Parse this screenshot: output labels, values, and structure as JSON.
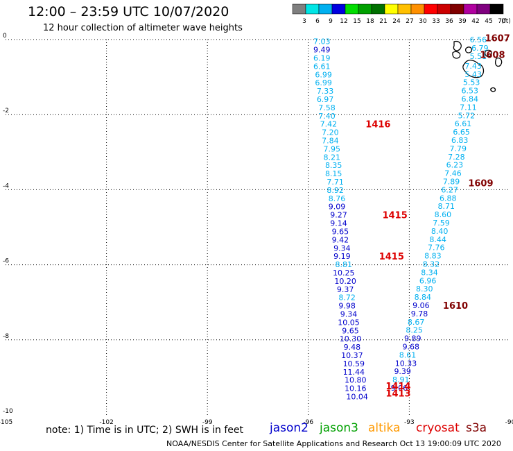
{
  "header": {
    "title": "12:00 – 23:59 UTC 10/07/2020",
    "subtitle": "12 hour collection of altimeter wave heights"
  },
  "colorbar": {
    "labels": [
      "3",
      "6",
      "9",
      "12",
      "15",
      "18",
      "21",
      "24",
      "27",
      "30",
      "33",
      "36",
      "39",
      "42",
      "45",
      "70",
      "(ft)"
    ],
    "colors": [
      "#7f7f7f",
      "#00e5e5",
      "#00b0f0",
      "#0000e0",
      "#00dd00",
      "#00a000",
      "#007000",
      "#ffff00",
      "#ffc000",
      "#ff9000",
      "#ff0000",
      "#cc0000",
      "#800000",
      "#b0009f",
      "#7f007f",
      "#000000"
    ]
  },
  "note": "note:  1) Time is in UTC;  2) SWH is in feet",
  "satellites": [
    {
      "name": "jason2",
      "color": "#0000cc"
    },
    {
      "name": "jason3",
      "color": "#00a000"
    },
    {
      "name": "altika",
      "color": "#ff9900"
    },
    {
      "name": "cryosat",
      "color": "#dd0000"
    },
    {
      "name": "s3a",
      "color": "#800000"
    }
  ],
  "footer": "NOAA/NESDIS Center for Satellite Applications and Research   Oct 13 19:00:09 UTC 2020",
  "chart_data": {
    "type": "scatter",
    "xlim": [
      -105,
      -90
    ],
    "ylim": [
      -10,
      0
    ],
    "x_ticks": [
      "-105",
      "-102",
      "-99",
      "-96",
      "-93",
      "-90"
    ],
    "y_ticks": [
      "0",
      "-2",
      "-4",
      "-6",
      "-8",
      "-10"
    ],
    "grid": true,
    "series": [
      {
        "name": "track-west",
        "points": [
          {
            "x": -95.6,
            "y": -0.05,
            "v": "7.03",
            "c": "#00b0f0"
          },
          {
            "x": -95.6,
            "y": -0.27,
            "v": "9.49",
            "c": "#0000cc"
          },
          {
            "x": -95.6,
            "y": -0.49,
            "v": "6.19",
            "c": "#00b0f0"
          },
          {
            "x": -95.6,
            "y": -0.71,
            "v": "6.61",
            "c": "#00b0f0"
          },
          {
            "x": -95.55,
            "y": -0.93,
            "v": "6.99",
            "c": "#00b0f0"
          },
          {
            "x": -95.55,
            "y": -1.15,
            "v": "6.99",
            "c": "#00b0f0"
          },
          {
            "x": -95.5,
            "y": -1.37,
            "v": "7.33",
            "c": "#00b0f0"
          },
          {
            "x": -95.5,
            "y": -1.59,
            "v": "6.97",
            "c": "#00b0f0"
          },
          {
            "x": -95.45,
            "y": -1.81,
            "v": "7.58",
            "c": "#00b0f0"
          },
          {
            "x": -95.45,
            "y": -2.03,
            "v": "7.40",
            "c": "#00b0f0"
          },
          {
            "x": -95.4,
            "y": -2.25,
            "v": "7.42",
            "c": "#00b0f0"
          },
          {
            "x": -95.35,
            "y": -2.47,
            "v": "7.20",
            "c": "#00b0f0"
          },
          {
            "x": -95.35,
            "y": -2.69,
            "v": "7.84",
            "c": "#00b0f0"
          },
          {
            "x": -95.3,
            "y": -2.91,
            "v": "7.95",
            "c": "#00b0f0"
          },
          {
            "x": -95.3,
            "y": -3.13,
            "v": "8.21",
            "c": "#00b0f0"
          },
          {
            "x": -95.25,
            "y": -3.35,
            "v": "8.35",
            "c": "#00b0f0"
          },
          {
            "x": -95.25,
            "y": -3.57,
            "v": "8.15",
            "c": "#00b0f0"
          },
          {
            "x": -95.2,
            "y": -3.79,
            "v": "7.71",
            "c": "#00b0f0"
          },
          {
            "x": -95.2,
            "y": -4.01,
            "v": "8.92",
            "c": "#00b0f0"
          },
          {
            "x": -95.15,
            "y": -4.23,
            "v": "8.76",
            "c": "#00b0f0"
          },
          {
            "x": -95.15,
            "y": -4.45,
            "v": "9.09",
            "c": "#0000cc"
          },
          {
            "x": -95.1,
            "y": -4.67,
            "v": "9.27",
            "c": "#0000cc"
          },
          {
            "x": -95.1,
            "y": -4.89,
            "v": "9.14",
            "c": "#0000cc"
          },
          {
            "x": -95.05,
            "y": -5.11,
            "v": "9.65",
            "c": "#0000cc"
          },
          {
            "x": -95.05,
            "y": -5.33,
            "v": "9.42",
            "c": "#0000cc"
          },
          {
            "x": -95.0,
            "y": -5.55,
            "v": "9.34",
            "c": "#0000cc"
          },
          {
            "x": -95.0,
            "y": -5.77,
            "v": "9.19",
            "c": "#0000cc"
          },
          {
            "x": -94.95,
            "y": -5.99,
            "v": "8.81",
            "c": "#00b0f0"
          },
          {
            "x": -94.95,
            "y": -6.21,
            "v": "10.25",
            "c": "#0000cc"
          },
          {
            "x": -94.9,
            "y": -6.43,
            "v": "10.20",
            "c": "#0000cc"
          },
          {
            "x": -94.9,
            "y": -6.65,
            "v": "9.37",
            "c": "#0000cc"
          },
          {
            "x": -94.85,
            "y": -6.87,
            "v": "8.72",
            "c": "#00b0f0"
          },
          {
            "x": -94.85,
            "y": -7.09,
            "v": "9.98",
            "c": "#0000cc"
          },
          {
            "x": -94.8,
            "y": -7.31,
            "v": "9.34",
            "c": "#0000cc"
          },
          {
            "x": -94.8,
            "y": -7.53,
            "v": "10.05",
            "c": "#0000cc"
          },
          {
            "x": -94.75,
            "y": -7.75,
            "v": "9.65",
            "c": "#0000cc"
          },
          {
            "x": -94.75,
            "y": -7.97,
            "v": "10.30",
            "c": "#0000cc"
          },
          {
            "x": -94.7,
            "y": -8.19,
            "v": "9.48",
            "c": "#0000cc"
          },
          {
            "x": -94.7,
            "y": -8.41,
            "v": "10.37",
            "c": "#0000cc"
          },
          {
            "x": -94.65,
            "y": -8.63,
            "v": "10.59",
            "c": "#0000cc"
          },
          {
            "x": -94.65,
            "y": -8.85,
            "v": "11.44",
            "c": "#0000cc"
          },
          {
            "x": -94.6,
            "y": -9.07,
            "v": "10.80",
            "c": "#0000cc"
          },
          {
            "x": -94.6,
            "y": -9.29,
            "v": "10.16",
            "c": "#0000cc"
          },
          {
            "x": -94.55,
            "y": -9.51,
            "v": "10.04",
            "c": "#0000cc"
          }
        ]
      },
      {
        "name": "track-east",
        "points": [
          {
            "x": -90.95,
            "y": 0.0,
            "v": "6.56",
            "c": "#00b0f0"
          },
          {
            "x": -90.9,
            "y": -0.22,
            "v": "6.79",
            "c": "#00b0f0"
          },
          {
            "x": -90.95,
            "y": -0.44,
            "v": "5.51",
            "c": "#00b0f0"
          },
          {
            "x": -91.1,
            "y": -0.7,
            "v": "7.43",
            "c": "#00b0f0"
          },
          {
            "x": -91.1,
            "y": -0.92,
            "v": "5.43",
            "c": "#00b0f0"
          },
          {
            "x": -91.15,
            "y": -1.14,
            "v": "5.53",
            "c": "#00b0f0"
          },
          {
            "x": -91.2,
            "y": -1.36,
            "v": "6.53",
            "c": "#00b0f0"
          },
          {
            "x": -91.2,
            "y": -1.58,
            "v": "6.84",
            "c": "#00b0f0"
          },
          {
            "x": -91.25,
            "y": -1.8,
            "v": "7.11",
            "c": "#00b0f0"
          },
          {
            "x": -91.3,
            "y": -2.02,
            "v": "5.72",
            "c": "#00b0f0"
          },
          {
            "x": -91.4,
            "y": -2.24,
            "v": "6.61",
            "c": "#00b0f0"
          },
          {
            "x": -91.45,
            "y": -2.46,
            "v": "6.65",
            "c": "#00b0f0"
          },
          {
            "x": -91.5,
            "y": -2.68,
            "v": "6.83",
            "c": "#00b0f0"
          },
          {
            "x": -91.55,
            "y": -2.9,
            "v": "7.79",
            "c": "#00b0f0"
          },
          {
            "x": -91.6,
            "y": -3.12,
            "v": "7.28",
            "c": "#00b0f0"
          },
          {
            "x": -91.65,
            "y": -3.34,
            "v": "6.23",
            "c": "#00b0f0"
          },
          {
            "x": -91.7,
            "y": -3.56,
            "v": "7.46",
            "c": "#00b0f0"
          },
          {
            "x": -91.75,
            "y": -3.78,
            "v": "7.89",
            "c": "#00b0f0"
          },
          {
            "x": -91.8,
            "y": -4.0,
            "v": "6.27",
            "c": "#00b0f0"
          },
          {
            "x": -91.85,
            "y": -4.22,
            "v": "6.88",
            "c": "#00b0f0"
          },
          {
            "x": -91.9,
            "y": -4.44,
            "v": "8.71",
            "c": "#00b0f0"
          },
          {
            "x": -92.0,
            "y": -4.66,
            "v": "8.60",
            "c": "#00b0f0"
          },
          {
            "x": -92.05,
            "y": -4.88,
            "v": "7.59",
            "c": "#00b0f0"
          },
          {
            "x": -92.1,
            "y": -5.1,
            "v": "8.40",
            "c": "#00b0f0"
          },
          {
            "x": -92.15,
            "y": -5.32,
            "v": "8.44",
            "c": "#00b0f0"
          },
          {
            "x": -92.2,
            "y": -5.54,
            "v": "7.76",
            "c": "#00b0f0"
          },
          {
            "x": -92.3,
            "y": -5.76,
            "v": "8.83",
            "c": "#00b0f0"
          },
          {
            "x": -92.35,
            "y": -5.98,
            "v": "8.32",
            "c": "#00b0f0"
          },
          {
            "x": -92.4,
            "y": -6.2,
            "v": "8.34",
            "c": "#00b0f0"
          },
          {
            "x": -92.45,
            "y": -6.42,
            "v": "6.96",
            "c": "#00b0f0"
          },
          {
            "x": -92.55,
            "y": -6.64,
            "v": "8.30",
            "c": "#00b0f0"
          },
          {
            "x": -92.6,
            "y": -6.86,
            "v": "8.84",
            "c": "#00b0f0"
          },
          {
            "x": -92.65,
            "y": -7.08,
            "v": "9.06",
            "c": "#0000cc"
          },
          {
            "x": -92.7,
            "y": -7.3,
            "v": "9.78",
            "c": "#0000cc"
          },
          {
            "x": -92.8,
            "y": -7.52,
            "v": "8.67",
            "c": "#00b0f0"
          },
          {
            "x": -92.85,
            "y": -7.74,
            "v": "8.25",
            "c": "#00b0f0"
          },
          {
            "x": -92.9,
            "y": -7.96,
            "v": "9.89",
            "c": "#0000cc"
          },
          {
            "x": -92.95,
            "y": -8.18,
            "v": "9.68",
            "c": "#0000cc"
          },
          {
            "x": -93.05,
            "y": -8.4,
            "v": "8.61",
            "c": "#00b0f0"
          },
          {
            "x": -93.1,
            "y": -8.62,
            "v": "10.33",
            "c": "#0000cc"
          },
          {
            "x": -93.2,
            "y": -8.84,
            "v": "9.39",
            "c": "#0000cc"
          },
          {
            "x": -93.25,
            "y": -9.06,
            "v": "8.91",
            "c": "#00b0f0"
          },
          {
            "x": -93.3,
            "y": -9.28,
            "v": "9.06",
            "c": "#0000cc"
          }
        ]
      }
    ],
    "time_labels": [
      {
        "x": -90.75,
        "y": 0.05,
        "t": "1607",
        "c": "#800000"
      },
      {
        "x": -90.9,
        "y": -0.4,
        "t": "1608",
        "c": "#800000"
      },
      {
        "x": -94.3,
        "y": -2.25,
        "t": "1416",
        "c": "#dd0000"
      },
      {
        "x": -91.25,
        "y": -3.82,
        "t": "1609",
        "c": "#800000"
      },
      {
        "x": -93.8,
        "y": -4.67,
        "t": "1415",
        "c": "#dd0000"
      },
      {
        "x": -93.9,
        "y": -5.77,
        "t": "1415",
        "c": "#dd0000"
      },
      {
        "x": -92.0,
        "y": -7.08,
        "t": "1610",
        "c": "#800000"
      },
      {
        "x": -93.7,
        "y": -9.22,
        "t": "1414",
        "c": "#dd0000"
      },
      {
        "x": -93.7,
        "y": -9.42,
        "t": "1413",
        "c": "#dd0000"
      }
    ]
  }
}
